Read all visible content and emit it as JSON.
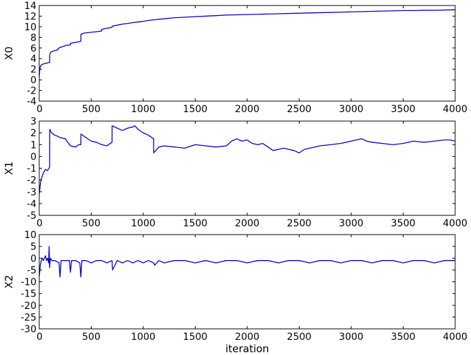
{
  "chart_data": [
    {
      "type": "line",
      "title": "",
      "xlabel": "",
      "ylabel": "X0",
      "xlim": [
        0,
        4000
      ],
      "ylim": [
        -4,
        14
      ],
      "xticks": [
        0,
        500,
        1000,
        1500,
        2000,
        2500,
        3000,
        3500,
        4000
      ],
      "yticks": [
        -4,
        -2,
        0,
        2,
        4,
        6,
        8,
        10,
        12,
        14
      ],
      "grid": false,
      "legend": "none",
      "series": [
        {
          "color": "#0000cc",
          "x": [
            0,
            5,
            10,
            20,
            30,
            40,
            60,
            80,
            100,
            101,
            110,
            130,
            150,
            170,
            180,
            181,
            200,
            230,
            260,
            300,
            301,
            330,
            360,
            390,
            400,
            401,
            430,
            470,
            520,
            560,
            600,
            601,
            640,
            680,
            700,
            701,
            750,
            800,
            850,
            900,
            950,
            1000,
            1050,
            1100,
            1200,
            1300,
            1400,
            1500,
            1600,
            1700,
            1800,
            1900,
            2000,
            2100,
            2200,
            2300,
            2400,
            2500,
            2600,
            2700,
            2800,
            2900,
            3000,
            3100,
            3200,
            3300,
            3400,
            3500,
            3600,
            3700,
            3800,
            3900,
            4000
          ],
          "y": [
            0.5,
            2.0,
            2.5,
            2.8,
            2.9,
            3.0,
            3.1,
            3.2,
            3.3,
            4.8,
            5.2,
            5.4,
            5.5,
            5.6,
            5.7,
            5.9,
            6.1,
            6.3,
            6.5,
            6.6,
            6.9,
            7.0,
            7.1,
            7.2,
            7.3,
            8.6,
            8.8,
            8.9,
            9.0,
            9.1,
            9.2,
            9.5,
            9.7,
            9.8,
            9.9,
            10.1,
            10.3,
            10.5,
            10.6,
            10.8,
            10.9,
            11.0,
            11.2,
            11.3,
            11.5,
            11.7,
            11.8,
            11.9,
            12.0,
            12.1,
            12.2,
            12.25,
            12.3,
            12.35,
            12.4,
            12.45,
            12.5,
            12.55,
            12.6,
            12.65,
            12.7,
            12.75,
            12.8,
            12.85,
            12.9,
            12.95,
            13.0,
            13.05,
            13.05,
            13.1,
            13.1,
            13.15,
            13.2
          ]
        }
      ]
    },
    {
      "type": "line",
      "title": "",
      "xlabel": "",
      "ylabel": "X1",
      "xlim": [
        0,
        4000
      ],
      "ylim": [
        -5,
        3
      ],
      "xticks": [
        0,
        500,
        1000,
        1500,
        2000,
        2500,
        3000,
        3500,
        4000
      ],
      "yticks": [
        -5,
        -4,
        -3,
        -2,
        -1,
        0,
        1,
        2,
        3
      ],
      "grid": false,
      "legend": "none",
      "series": [
        {
          "color": "#0000cc",
          "x": [
            0,
            10,
            20,
            40,
            60,
            80,
            100,
            101,
            120,
            150,
            180,
            200,
            250,
            300,
            350,
            380,
            400,
            401,
            450,
            500,
            550,
            600,
            650,
            700,
            701,
            750,
            800,
            850,
            900,
            920,
            950,
            1000,
            1050,
            1100,
            1101,
            1150,
            1200,
            1300,
            1400,
            1500,
            1600,
            1700,
            1800,
            1850,
            1900,
            1950,
            2000,
            2050,
            2100,
            2150,
            2200,
            2250,
            2300,
            2350,
            2400,
            2450,
            2500,
            2550,
            2600,
            2700,
            2800,
            2900,
            3000,
            3100,
            3150,
            3200,
            3300,
            3400,
            3500,
            3600,
            3700,
            3800,
            3900,
            3950,
            4000
          ],
          "y": [
            -3.2,
            -2.4,
            -1.9,
            -1.4,
            -1.1,
            -1.2,
            -0.9,
            2.3,
            2.0,
            1.8,
            1.7,
            1.6,
            1.5,
            0.9,
            0.8,
            1.0,
            1.0,
            1.9,
            1.6,
            1.3,
            1.2,
            1.0,
            0.9,
            1.2,
            2.6,
            2.4,
            2.2,
            2.4,
            2.5,
            2.6,
            2.3,
            2.0,
            1.8,
            1.5,
            0.3,
            0.8,
            0.9,
            0.8,
            0.7,
            1.0,
            0.9,
            0.8,
            0.9,
            1.3,
            1.5,
            1.3,
            1.4,
            1.1,
            1.0,
            1.1,
            0.8,
            0.5,
            0.6,
            0.7,
            0.6,
            0.5,
            0.3,
            0.6,
            0.7,
            0.9,
            1.0,
            1.1,
            1.3,
            1.5,
            1.3,
            1.2,
            1.1,
            1.0,
            1.1,
            1.3,
            1.2,
            1.3,
            1.4,
            1.4,
            1.3
          ]
        }
      ]
    },
    {
      "type": "line",
      "title": "",
      "xlabel": "iteration",
      "ylabel": "X2",
      "xlim": [
        0,
        4000
      ],
      "ylim": [
        -30,
        10
      ],
      "xticks": [
        0,
        500,
        1000,
        1500,
        2000,
        2500,
        3000,
        3500,
        4000
      ],
      "yticks": [
        -30,
        -25,
        -20,
        -15,
        -10,
        -5,
        0,
        5,
        10
      ],
      "grid": false,
      "legend": "none",
      "series": [
        {
          "color": "#0000cc",
          "x": [
            0,
            10,
            20,
            30,
            40,
            50,
            60,
            70,
            80,
            90,
            95,
            100,
            105,
            110,
            120,
            150,
            190,
            200,
            210,
            250,
            290,
            300,
            310,
            350,
            390,
            400,
            410,
            450,
            500,
            550,
            600,
            650,
            700,
            705,
            750,
            800,
            850,
            900,
            950,
            1000,
            1050,
            1100,
            1110,
            1150,
            1200,
            1300,
            1400,
            1500,
            1600,
            1700,
            1800,
            1900,
            2000,
            2100,
            2200,
            2300,
            2400,
            2500,
            2600,
            2700,
            2800,
            2900,
            3000,
            3100,
            3200,
            3300,
            3400,
            3500,
            3600,
            3700,
            3800,
            3900,
            4000
          ],
          "y": [
            -8,
            -3,
            -1,
            0,
            -1,
            0,
            1,
            -1,
            0,
            -2,
            5,
            -4,
            -1,
            0,
            -1,
            -1,
            -2,
            -8,
            -1,
            -1,
            -1,
            -6,
            -1,
            -1,
            -2,
            -8,
            -1,
            -1,
            -2,
            -1,
            -1,
            -2,
            -1,
            -5,
            -1,
            -2,
            -1,
            -2,
            -1,
            -2,
            -1,
            -2,
            -3,
            -1,
            -2,
            -1,
            -1,
            -2,
            -1,
            -2,
            -1,
            -1,
            -2,
            -1,
            -1,
            -2,
            -1,
            -1,
            -2,
            -1,
            -1,
            -2,
            -1,
            -1,
            -2,
            -1,
            -1,
            -2,
            -1,
            -1,
            -2,
            -1,
            -1
          ]
        }
      ]
    }
  ]
}
